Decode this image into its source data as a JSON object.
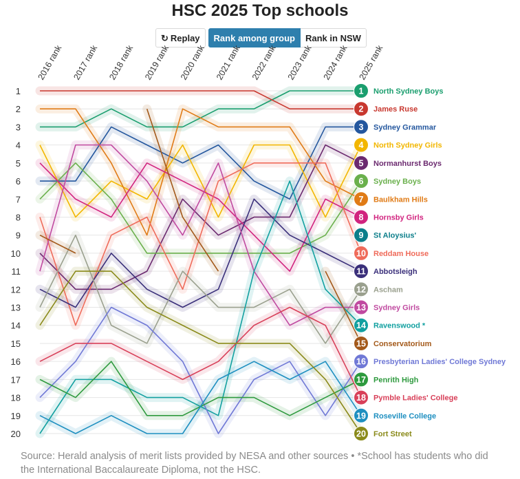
{
  "title": "HSC 2025 Top schools",
  "controls": {
    "replay_label": "Replay",
    "replay_icon": "replay-icon",
    "toggle": [
      {
        "label": "Rank among group",
        "active": true
      },
      {
        "label": "Rank in NSW",
        "active": false
      }
    ]
  },
  "footer": {
    "source": "Source: Herald analysis of merit lists provided by NESA and other sources • *School has students who did the International Baccalaureate Diploma, not the HSC."
  },
  "chart_data": {
    "type": "line",
    "title": "HSC 2025 Top schools",
    "x": [
      "2016 rank",
      "2017 rank",
      "2018 rank",
      "2019 rank",
      "2020 rank",
      "2021 rank",
      "2022 rank",
      "2023 rank",
      "2024 rank",
      "2025 rank"
    ],
    "ylim": [
      1,
      20
    ],
    "y_ticks": [
      1,
      2,
      3,
      4,
      5,
      6,
      7,
      8,
      9,
      10,
      11,
      12,
      13,
      14,
      15,
      16,
      17,
      18,
      19,
      20
    ],
    "y_inverted": true,
    "grid": true,
    "series": [
      {
        "name": "North Sydney Boys",
        "color": "#1a9e6e",
        "values": [
          3,
          3,
          2,
          3,
          3,
          2,
          2,
          1,
          1,
          1
        ]
      },
      {
        "name": "James Ruse",
        "color": "#c8382f",
        "values": [
          1,
          1,
          1,
          1,
          1,
          1,
          1,
          2,
          2,
          2
        ]
      },
      {
        "name": "Sydney Grammar",
        "color": "#24579e",
        "values": [
          6,
          6,
          3,
          4,
          5,
          4,
          6,
          7,
          3,
          3
        ]
      },
      {
        "name": "North Sydney Girls",
        "color": "#f2b600",
        "values": [
          4,
          8,
          6,
          7,
          4,
          8,
          4,
          4,
          8,
          4
        ]
      },
      {
        "name": "Normanhurst Boys",
        "color": "#6b2a6f",
        "values": [
          10,
          12,
          12,
          11,
          7,
          9,
          8,
          8,
          4,
          5
        ]
      },
      {
        "name": "Sydney Boys",
        "color": "#6ab04c",
        "values": [
          7,
          5,
          7,
          10,
          10,
          10,
          10,
          10,
          9,
          6
        ]
      },
      {
        "name": "Baulkham Hills",
        "color": "#e07b16",
        "values": [
          2,
          2,
          5,
          9,
          2,
          3,
          3,
          3,
          6,
          7
        ]
      },
      {
        "name": "Hornsby Girls",
        "color": "#d1247f",
        "values": [
          5,
          7,
          8,
          5,
          6,
          7,
          9,
          11,
          7,
          8
        ]
      },
      {
        "name": "St Aloysius'",
        "color": "#0c7e8a",
        "values": [
          null,
          null,
          null,
          null,
          null,
          null,
          null,
          null,
          null,
          9
        ]
      },
      {
        "name": "Reddam House",
        "color": "#ef6b5a",
        "values": [
          8,
          14,
          9,
          8,
          12,
          6,
          5,
          5,
          5,
          10
        ]
      },
      {
        "name": "Abbotsleigh",
        "color": "#3a2f7a",
        "values": [
          12,
          13,
          10,
          12,
          13,
          12,
          7,
          9,
          10,
          11
        ]
      },
      {
        "name": "Ascham",
        "color": "#9aa08e",
        "values": [
          13,
          9,
          14,
          15,
          11,
          13,
          13,
          12,
          15,
          12
        ]
      },
      {
        "name": "Sydney Girls",
        "color": "#c04aa0",
        "values": [
          11,
          4,
          4,
          6,
          9,
          5,
          11,
          14,
          13,
          13
        ]
      },
      {
        "name": "Ravenswood *",
        "color": "#12a0a0",
        "values": [
          20,
          17,
          17,
          18,
          18,
          19,
          11,
          6,
          12,
          14
        ]
      },
      {
        "name": "Conservatorium",
        "color": "#a3591a",
        "values": [
          9,
          10,
          null,
          2,
          8,
          11,
          null,
          null,
          11,
          15
        ]
      },
      {
        "name": "Presbyterian Ladies' College Sydney",
        "color": "#6f78d6",
        "values": [
          18,
          16,
          13,
          14,
          16,
          20,
          17,
          16,
          19,
          16
        ]
      },
      {
        "name": "Penrith High",
        "color": "#2e9a3e",
        "values": [
          17,
          18,
          16,
          19,
          19,
          18,
          18,
          19,
          18,
          17
        ]
      },
      {
        "name": "Pymble Ladies' College",
        "color": "#d84059",
        "values": [
          16,
          15,
          15,
          16,
          17,
          16,
          14,
          13,
          14,
          18
        ]
      },
      {
        "name": "Roseville College",
        "color": "#1e8fc0",
        "values": [
          19,
          20,
          19,
          20,
          20,
          17,
          16,
          17,
          16,
          19
        ]
      },
      {
        "name": "Fort Street",
        "color": "#8a8a1a",
        "values": [
          14,
          11,
          11,
          13,
          14,
          15,
          15,
          15,
          17,
          20
        ]
      }
    ]
  }
}
